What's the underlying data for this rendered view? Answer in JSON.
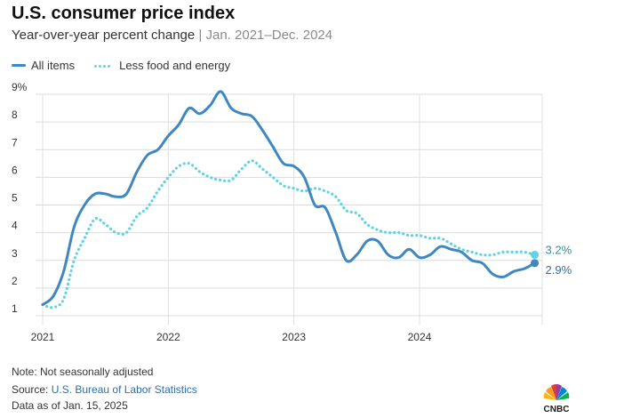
{
  "header": {
    "title": "U.S. consumer price index",
    "subtitle_main": "Year-over-year percent change",
    "subtitle_sep": "|",
    "subtitle_range": "Jan. 2021–Dec. 2024"
  },
  "legend": {
    "items": [
      {
        "label": "All items",
        "style": "solid",
        "color": "#3f87c1"
      },
      {
        "label": "Less food and energy",
        "style": "dotted",
        "color": "#5fd3e6"
      }
    ]
  },
  "chart_data": {
    "type": "line",
    "title": "U.S. consumer price index",
    "subtitle": "Year-over-year percent change | Jan. 2021–Dec. 2024",
    "xlabel": "",
    "ylabel": "",
    "x_ticks": [
      "2021",
      "2022",
      "2023",
      "2024"
    ],
    "y_ticks": [
      "1",
      "2",
      "3",
      "4",
      "5",
      "6",
      "7",
      "8",
      "9%"
    ],
    "ylim": [
      1,
      9
    ],
    "grid": "horizontal",
    "legend_position": "top-left",
    "x": [
      "2021-01",
      "2021-02",
      "2021-03",
      "2021-04",
      "2021-05",
      "2021-06",
      "2021-07",
      "2021-08",
      "2021-09",
      "2021-10",
      "2021-11",
      "2021-12",
      "2022-01",
      "2022-02",
      "2022-03",
      "2022-04",
      "2022-05",
      "2022-06",
      "2022-07",
      "2022-08",
      "2022-09",
      "2022-10",
      "2022-11",
      "2022-12",
      "2023-01",
      "2023-02",
      "2023-03",
      "2023-04",
      "2023-05",
      "2023-06",
      "2023-07",
      "2023-08",
      "2023-09",
      "2023-10",
      "2023-11",
      "2023-12",
      "2024-01",
      "2024-02",
      "2024-03",
      "2024-04",
      "2024-05",
      "2024-06",
      "2024-07",
      "2024-08",
      "2024-09",
      "2024-10",
      "2024-11",
      "2024-12"
    ],
    "series": [
      {
        "name": "All items",
        "color": "#3f87c1",
        "style": "solid",
        "values": [
          1.4,
          1.7,
          2.6,
          4.2,
          5.0,
          5.4,
          5.4,
          5.3,
          5.4,
          6.2,
          6.8,
          7.0,
          7.5,
          7.9,
          8.5,
          8.3,
          8.6,
          9.1,
          8.5,
          8.3,
          8.2,
          7.7,
          7.1,
          6.5,
          6.4,
          6.0,
          5.0,
          4.9,
          4.0,
          3.0,
          3.2,
          3.7,
          3.7,
          3.2,
          3.1,
          3.4,
          3.1,
          3.2,
          3.5,
          3.4,
          3.3,
          3.0,
          2.9,
          2.5,
          2.4,
          2.6,
          2.7,
          2.9
        ]
      },
      {
        "name": "Less food and energy",
        "color": "#5fd3e6",
        "style": "dotted",
        "values": [
          1.4,
          1.3,
          1.6,
          3.0,
          3.8,
          4.5,
          4.3,
          4.0,
          4.0,
          4.6,
          4.9,
          5.5,
          6.0,
          6.4,
          6.5,
          6.2,
          6.0,
          5.9,
          5.9,
          6.3,
          6.6,
          6.3,
          6.0,
          5.7,
          5.6,
          5.5,
          5.6,
          5.5,
          5.3,
          4.8,
          4.7,
          4.3,
          4.1,
          4.0,
          4.0,
          3.9,
          3.9,
          3.8,
          3.8,
          3.6,
          3.4,
          3.3,
          3.2,
          3.2,
          3.3,
          3.3,
          3.3,
          3.2
        ]
      }
    ],
    "end_labels": [
      "3.2%",
      "2.9%"
    ]
  },
  "footer": {
    "note": "Note: Not seasonally adjusted",
    "source_prefix": "Source: ",
    "source_link": "U.S. Bureau of Labor Statistics",
    "as_of": "Data as of Jan. 15, 2025",
    "logo_text": "CNBC"
  }
}
